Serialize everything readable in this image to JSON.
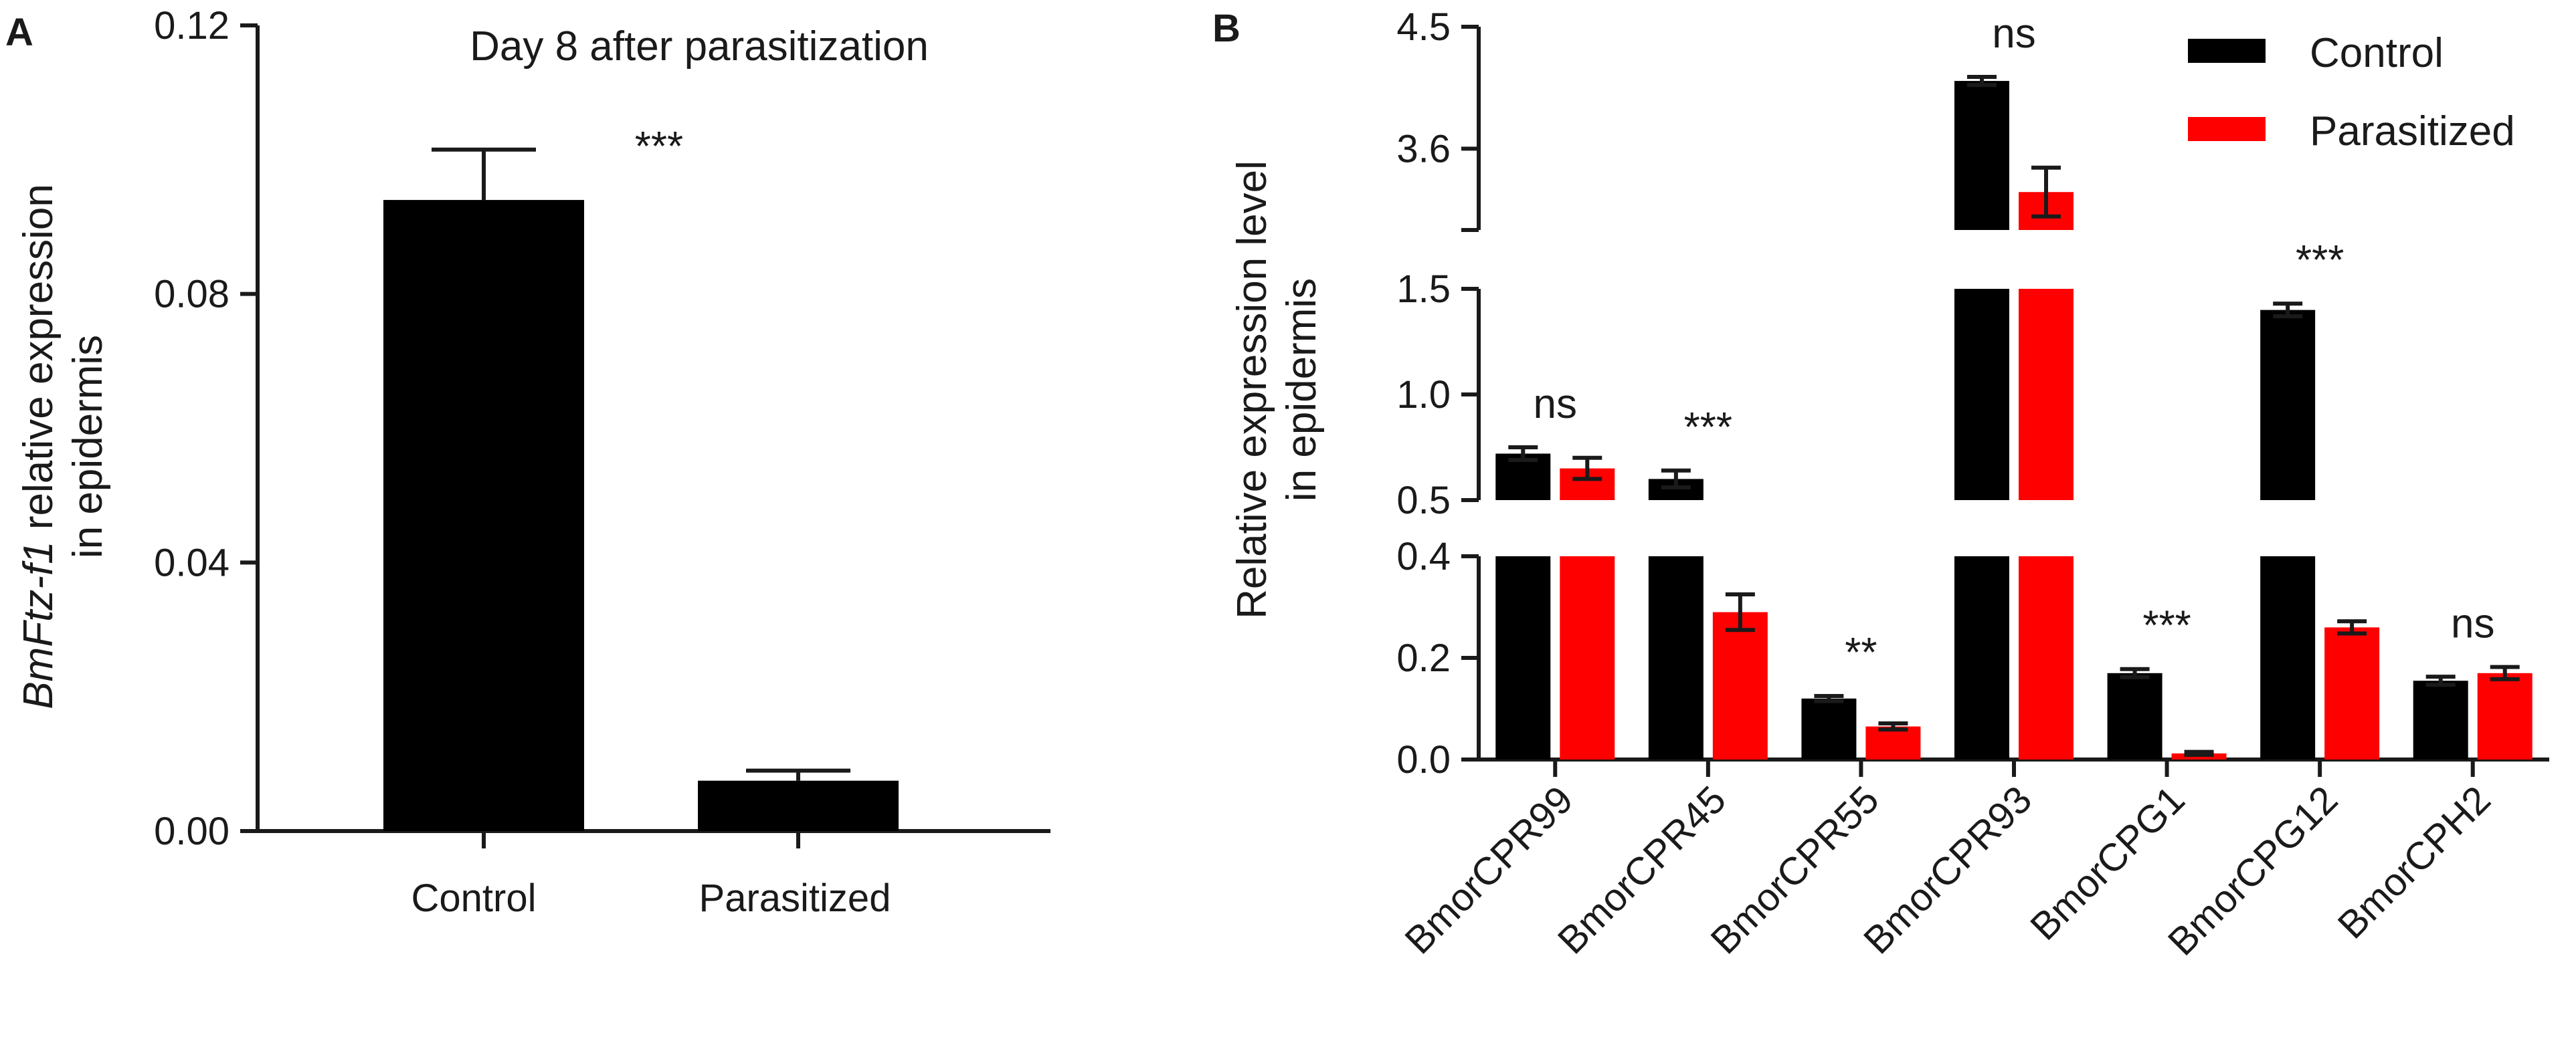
{
  "colors": {
    "control": "#000000",
    "parasitized": "#ff0000",
    "axis": "#1a1a1a"
  },
  "panels": {
    "a": {
      "label": "A"
    },
    "b": {
      "label": "B"
    }
  },
  "chart_data": [
    {
      "panel": "A",
      "type": "bar",
      "title": "Day 8 after parasitization",
      "ylabel_italic": "BmFtz-f1",
      "ylabel_rest": " relative expression",
      "ylabel_line2": "in epidermis",
      "xlabel": "",
      "ylim": [
        0,
        0.12
      ],
      "yticks": [
        "0.00",
        "0.04",
        "0.08",
        "0.12"
      ],
      "categories": [
        "Control",
        "Parasitized"
      ],
      "values": [
        0.094,
        0.0075
      ],
      "errors": [
        0.0075,
        0.0015
      ],
      "significance": "***"
    },
    {
      "panel": "B",
      "type": "bar",
      "title": "",
      "ylabel": "Relative expression level",
      "ylabel_line2": "in epidermis",
      "categories": [
        "BmorCPR99",
        "BmorCPR45",
        "BmorCPR55",
        "BmorCPR93",
        "BmorCPG1",
        "BmorCPG12",
        "BmorCPH2"
      ],
      "series": [
        {
          "name": "Control",
          "values": [
            0.72,
            0.6,
            0.12,
            4.1,
            0.17,
            1.4,
            0.155
          ],
          "errors": [
            0.03,
            0.04,
            0.005,
            0.03,
            0.008,
            0.03,
            0.008
          ]
        },
        {
          "name": "Parasitized",
          "values": [
            0.65,
            0.29,
            0.065,
            3.28,
            0.012,
            0.26,
            0.17
          ],
          "errors": [
            0.05,
            0.035,
            0.006,
            0.18,
            0.003,
            0.012,
            0.012
          ]
        }
      ],
      "significance": [
        "ns",
        "***",
        "**",
        "ns",
        "***",
        "***",
        "ns"
      ],
      "axis_segments": [
        {
          "range": [
            0,
            0.4
          ],
          "ticks": [
            "0.0",
            "0.2",
            "0.4"
          ]
        },
        {
          "range": [
            0.5,
            1.5
          ],
          "ticks": [
            "0.5",
            "1.0",
            "1.5"
          ]
        },
        {
          "range": [
            3.0,
            4.5
          ],
          "ticks": [
            "3.6",
            "4.5"
          ]
        }
      ],
      "legend_position": "top-right"
    }
  ]
}
